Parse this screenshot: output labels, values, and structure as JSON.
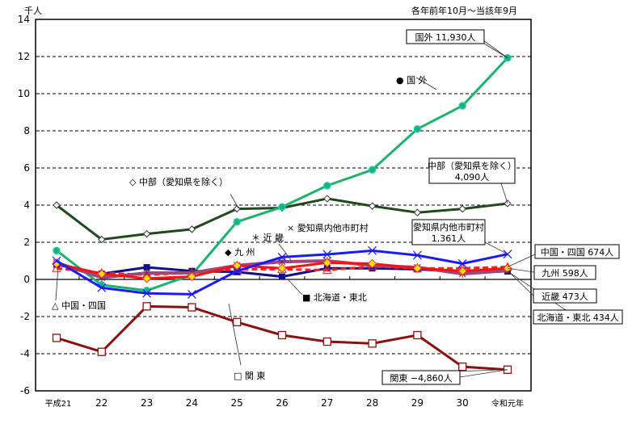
{
  "chart_data": {
    "type": "line",
    "unit_label": "千人",
    "period_note": "各年前年10月～当該年9月",
    "categories": [
      "平成21",
      "22",
      "23",
      "24",
      "25",
      "26",
      "27",
      "28",
      "29",
      "30",
      "令和元年"
    ],
    "ylim": [
      -6,
      14
    ],
    "yticks": [
      -6,
      -4,
      -2,
      0,
      2,
      4,
      6,
      8,
      10,
      12,
      14
    ],
    "grid": true,
    "series": [
      {
        "name": "国 外",
        "marker": "●",
        "color": "#1db36b",
        "marker_color": "#19c9c0",
        "values": [
          1.55,
          -0.3,
          -0.6,
          0.25,
          3.1,
          3.9,
          5.05,
          5.9,
          8.1,
          9.35,
          11.93
        ]
      },
      {
        "name": "中部（愛知県を除く）",
        "marker": "◇",
        "color": "#1f4a1c",
        "marker_color": "#ffffff",
        "values": [
          4.0,
          2.15,
          2.45,
          2.7,
          3.8,
          3.85,
          4.35,
          3.95,
          3.6,
          3.8,
          4.09
        ]
      },
      {
        "name": "関 東",
        "marker": "□",
        "color": "#8b1010",
        "marker_color": "#ffffff",
        "values": [
          -3.15,
          -3.9,
          -1.45,
          -1.5,
          -2.3,
          -3.0,
          -3.35,
          -3.45,
          -3.0,
          -4.7,
          -4.86
        ]
      },
      {
        "name": "愛知県内他市町村",
        "marker": "×",
        "color": "#1a1aff",
        "marker_color": "#1a1aff",
        "values": [
          1.0,
          -0.45,
          -0.75,
          -0.8,
          0.45,
          1.2,
          1.35,
          1.55,
          1.3,
          0.85,
          1.361
        ]
      },
      {
        "name": "近 畿",
        "marker": "＊",
        "color": "#9a4a7a",
        "marker_color": "#7a2050",
        "values": [
          0.9,
          0.1,
          0.35,
          0.35,
          0.75,
          0.95,
          1.0,
          0.75,
          0.65,
          0.3,
          0.473
        ]
      },
      {
        "name": "九 州",
        "marker": "◆",
        "color": "#ff1010",
        "marker_color": "#ffdd00",
        "values": [
          0.85,
          0.3,
          0.05,
          0.15,
          0.75,
          0.6,
          0.9,
          0.85,
          0.6,
          0.45,
          0.598
        ]
      },
      {
        "name": "中国・四国",
        "marker": "△",
        "color": "#ff2020",
        "marker_color": "#ff2020",
        "dashed": true,
        "values": [
          0.6,
          0.35,
          0.25,
          0.35,
          0.55,
          0.55,
          0.5,
          0.7,
          0.6,
          0.6,
          0.674
        ]
      },
      {
        "name": "北海道・東北",
        "marker": "■",
        "color": "#10108a",
        "marker_color": "#10108a",
        "values": [
          0.8,
          0.3,
          0.65,
          0.45,
          0.4,
          0.15,
          0.6,
          0.6,
          0.55,
          0.4,
          0.434
        ]
      }
    ],
    "series_labels": {
      "kokugai": "● 国 外",
      "chubu": "◇ 中部（愛知県を除く）",
      "kanto": "□ 関 東",
      "aichi": "× 愛知県内他市町村",
      "kinki": "＊ 近 畿",
      "kyushu": "◆ 九 州",
      "chugoku": "△ 中国・四国",
      "hokkaido": "■ 北海道・東北"
    },
    "annotations": {
      "kokugai": "国外 11,930人",
      "chubu_1": "中部（愛知県を除く）",
      "chubu_2": "4,090人",
      "aichi_1": "愛知県内他市町村",
      "aichi_2": "1,361人",
      "chugoku": "中国・四国 674人",
      "kyushu": "九州 598人",
      "kinki": "近畿 473人",
      "hokkaido": "北海道・東北 434人",
      "kanto": "関東 −4,860人"
    }
  }
}
